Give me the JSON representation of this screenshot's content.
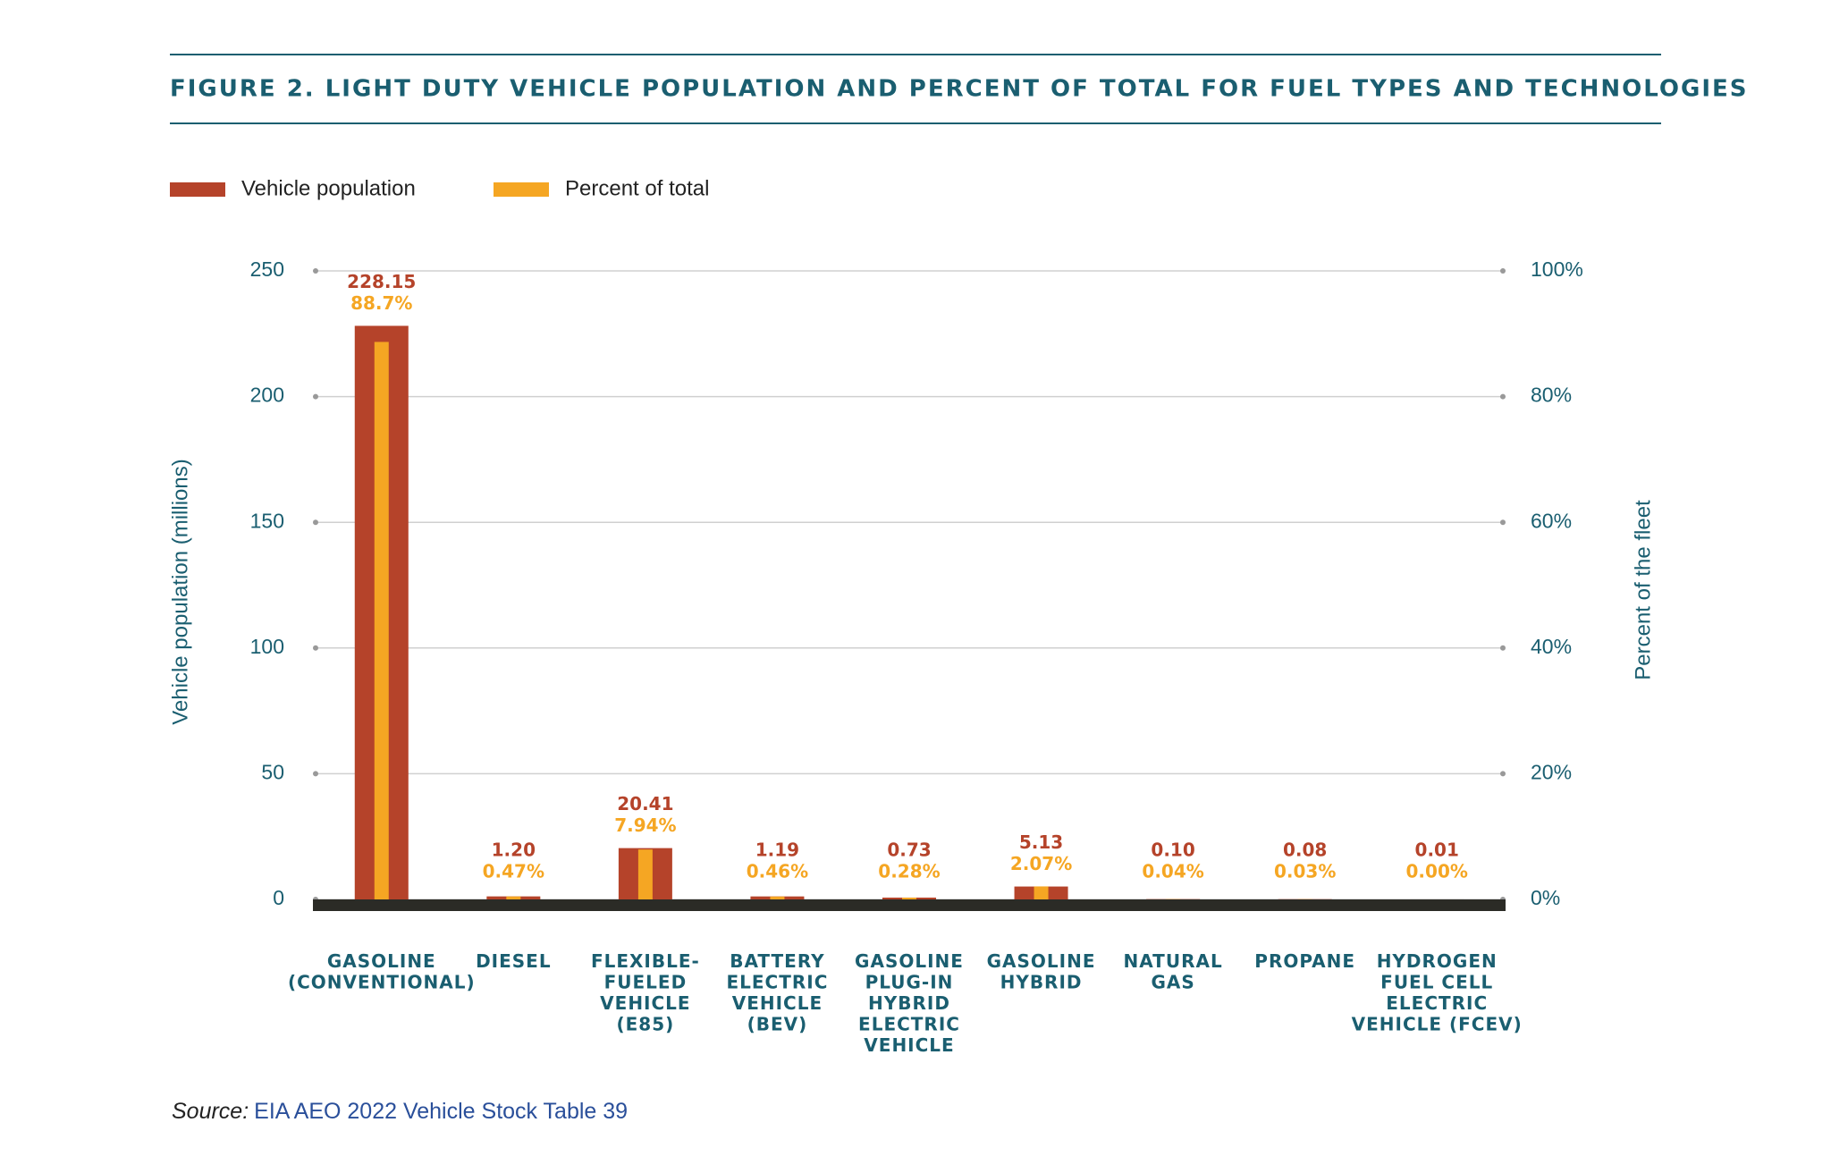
{
  "chart_data": {
    "type": "bar",
    "title": "FIGURE 2. LIGHT DUTY VEHICLE POPULATION AND PERCENT OF TOTAL FOR FUEL TYPES AND TECHNOLOGIES",
    "categories": [
      "GASOLINE\n(CONVENTIONAL)",
      "DIESEL",
      "FLEXIBLE-\nFUELED\nVEHICLE\n(E85)",
      "BATTERY\nELECTRIC\nVEHICLE\n(BEV)",
      "GASOLINE\nPLUG-IN\nHYBRID\nELECTRIC\nVEHICLE",
      "GASOLINE\nHYBRID",
      "NATURAL\nGAS",
      "PROPANE",
      "HYDROGEN\nFUEL CELL\nELECTRIC\nVEHICLE (FCEV)"
    ],
    "series": [
      {
        "name": "Vehicle population",
        "color": "#b5432a",
        "values": [
          228.15,
          1.2,
          20.41,
          1.19,
          0.73,
          5.13,
          0.1,
          0.08,
          0.01
        ],
        "value_labels": [
          "228.15",
          "1.20",
          "20.41",
          "1.19",
          "0.73",
          "5.13",
          "0.10",
          "0.08",
          "0.01"
        ]
      },
      {
        "name": "Percent of total",
        "color": "#f5a623",
        "axis": "y2",
        "values": [
          88.7,
          0.47,
          7.94,
          0.46,
          0.28,
          2.07,
          0.04,
          0.03,
          0.0
        ],
        "value_labels": [
          "88.7%",
          "0.47%",
          "7.94%",
          "0.46%",
          "0.28%",
          "2.07%",
          "0.04%",
          "0.03%",
          "0.00%"
        ]
      }
    ],
    "ylabel": "Vehicle population (millions)",
    "y2label": "Percent of the fleet",
    "ylim": [
      0,
      250
    ],
    "yticks": [
      0,
      50,
      100,
      150,
      200,
      250
    ],
    "y2lim": [
      0,
      100
    ],
    "y2ticks": [
      {
        "value": 0,
        "label": "0%"
      },
      {
        "value": 20,
        "label": "20%"
      },
      {
        "value": 40,
        "label": "40%"
      },
      {
        "value": 60,
        "label": "60%"
      },
      {
        "value": 80,
        "label": "80%"
      },
      {
        "value": 100,
        "label": "100%"
      }
    ],
    "grid": true,
    "legend": "top-left",
    "source": {
      "label": "Source:",
      "text": "EIA AEO 2022 Vehicle Stock Table 39"
    }
  }
}
